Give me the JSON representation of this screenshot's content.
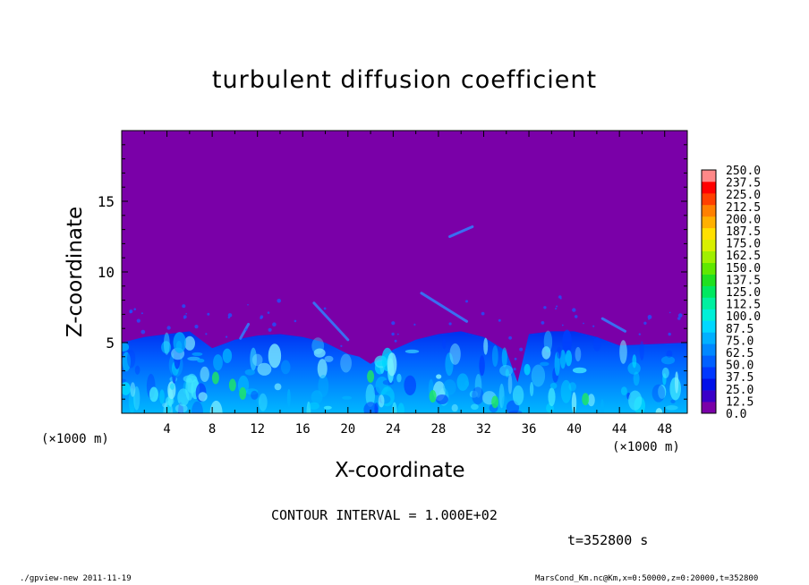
{
  "chart_data": {
    "type": "heatmap",
    "title": "turbulent diffusion coefficient",
    "xlabel": "X-coordinate",
    "ylabel": "Z-coordinate",
    "x_unit": "(×1000 m)",
    "xlim": [
      0,
      50
    ],
    "ylim": [
      0,
      20
    ],
    "x_ticks": [
      4,
      8,
      12,
      16,
      20,
      24,
      28,
      32,
      36,
      40,
      44,
      48
    ],
    "y_ticks": [
      5,
      10,
      15
    ],
    "colorbar": {
      "levels": [
        0.0,
        12.5,
        25.0,
        37.5,
        50.0,
        62.5,
        75.0,
        87.5,
        100.0,
        112.5,
        125.0,
        137.5,
        150.0,
        162.5,
        175.0,
        187.5,
        200.0,
        212.5,
        225.0,
        237.5,
        250.0
      ],
      "labels": [
        "0.0",
        "12.5",
        "25.0",
        "37.5",
        "50.0",
        "62.5",
        "75.0",
        "87.5",
        "100.0",
        "112.5",
        "125.0",
        "137.5",
        "150.0",
        "162.5",
        "175.0",
        "187.5",
        "200.0",
        "212.5",
        "225.0",
        "237.5",
        "250.0"
      ],
      "colors": [
        "#7a00a8",
        "#3a00c8",
        "#0010e8",
        "#0038ff",
        "#0060ff",
        "#0088ff",
        "#00b0ff",
        "#00d8ff",
        "#00f0d8",
        "#00f0a0",
        "#00e860",
        "#20e020",
        "#60e800",
        "#a0f000",
        "#d8f000",
        "#ffe000",
        "#ffb000",
        "#ff8000",
        "#ff4000",
        "#ff0000",
        "#ff8888"
      ]
    },
    "background_color": "#7a00a8",
    "turbulent_layer_top": [
      5.0,
      5.4,
      5.6,
      5.8,
      4.6,
      5.2,
      5.5,
      5.6,
      5.4,
      5.0,
      4.2,
      4.0,
      3.5,
      4.5,
      5.2,
      5.6,
      5.8,
      5.4,
      4.4,
      2.2,
      5.6,
      5.8,
      5.8,
      5.4,
      4.8,
      5.0
    ],
    "layer_x": [
      0,
      2,
      4,
      6,
      8,
      10,
      12,
      14,
      16,
      18,
      20,
      21,
      22,
      24,
      26,
      28,
      30,
      32,
      34,
      35,
      36,
      38,
      40,
      42,
      44,
      50
    ]
  },
  "annotations": {
    "contour_interval": "CONTOUR INTERVAL = 1.000E+02",
    "time": "t=352800 s",
    "footer_left": "./gpview-new  2011-11-19",
    "footer_right": "MarsCond_Km.nc@Km,x=0:50000,z=0:20000,t=352800"
  }
}
